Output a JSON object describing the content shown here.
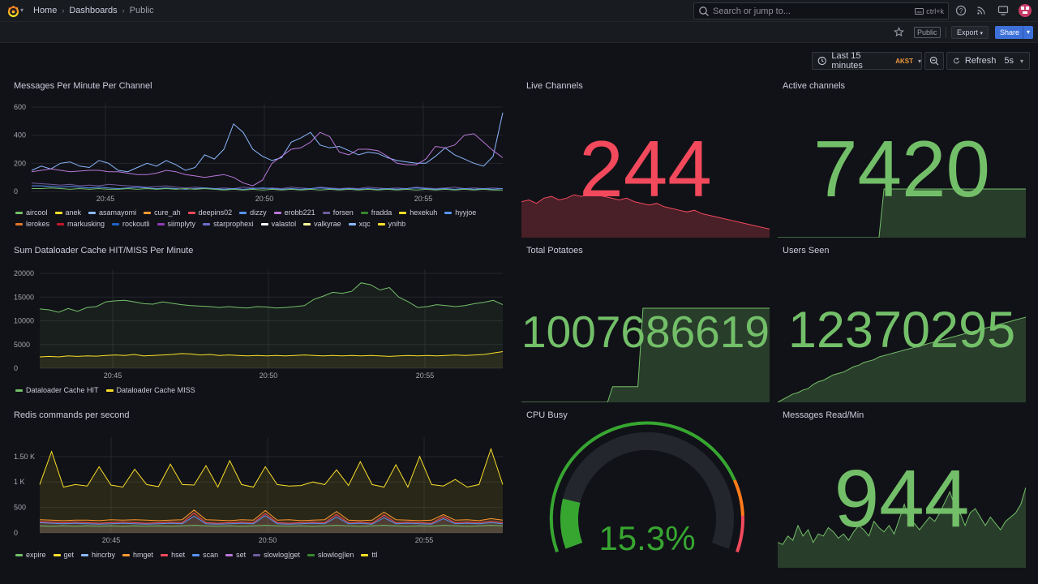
{
  "nav": {
    "breadcrumbs": [
      "Home",
      "Dashboards",
      "Public"
    ],
    "search_placeholder": "Search or jump to...",
    "search_shortcut": "ctrl+k"
  },
  "toolbar": {
    "public_badge": "Public",
    "export_label": "Export",
    "share_label": "Share"
  },
  "time": {
    "range_label": "Last 15 minutes",
    "timezone": "AKST",
    "refresh_label": "Refresh",
    "refresh_interval": "5s"
  },
  "colors": {
    "green": "#73bf69",
    "red": "#f2495c",
    "yellow": "#fade2a",
    "blue": "#5794f2"
  },
  "panels": {
    "messages_per_minute": {
      "title": "Messages Per Minute Per Channel",
      "y_ticks": [
        "600",
        "400",
        "200",
        "0"
      ],
      "x_ticks": [
        "20:45",
        "20:50",
        "20:55"
      ],
      "legend": [
        "aircool",
        "anek",
        "asamayomi",
        "cure_ah",
        "deepins02",
        "dizzy",
        "erobb221",
        "forsen",
        "fradda",
        "hexekuh",
        "hyyjoe",
        "lerokes",
        "markusking",
        "rockoutli",
        "siimplyty",
        "starprophexi",
        "valastol",
        "valkyrae",
        "xqc",
        "ynihb"
      ],
      "legend_colors": [
        "#73bf69",
        "#fade2a",
        "#8ab8ff",
        "#ff9830",
        "#f2495c",
        "#5794f2",
        "#b877d9",
        "#705da0",
        "#37872d",
        "#fade2a",
        "#5794f2",
        "#e0752d",
        "#c4162a",
        "#1f60c4",
        "#8f3bb8",
        "#6d6ec9",
        "#ffffff",
        "#fff899",
        "#8ab8ff",
        "#fade2a"
      ],
      "chart_data": {
        "type": "line",
        "ylim": [
          0,
          600
        ],
        "series": [
          {
            "name": "xqc",
            "color": "#8ab8ff",
            "values": [
              150,
              180,
              160,
              200,
              210,
              180,
              170,
              220,
              200,
              150,
              140,
              170,
              200,
              180,
              220,
              190,
              150,
              170,
              260,
              230,
              300,
              480,
              420,
              300,
              250,
              220,
              240,
              350,
              380,
              420,
              330,
              310,
              320,
              290,
              260,
              280,
              270,
              240,
              220,
              210,
              200,
              200,
              250,
              310,
              260,
              230,
              200,
              180,
              250,
              560
            ]
          },
          {
            "name": "erobb221",
            "color": "#b877d9",
            "values": [
              140,
              150,
              160,
              150,
              140,
              145,
              150,
              150,
              140,
              140,
              130,
              120,
              120,
              130,
              150,
              140,
              120,
              110,
              100,
              110,
              120,
              100,
              60,
              40,
              80,
              200,
              250,
              300,
              310,
              350,
              420,
              390,
              280,
              260,
              300,
              300,
              290,
              250,
              200,
              190,
              190,
              230,
              320,
              310,
              330,
              400,
              410,
              350,
              290,
              240
            ]
          },
          {
            "name": "forsen",
            "color": "#705da0",
            "values": [
              60,
              55,
              50,
              45,
              50,
              40,
              45,
              40,
              50,
              45,
              40,
              35,
              30,
              35,
              40,
              30,
              25,
              30,
              25,
              20,
              25,
              20,
              30,
              25,
              20,
              25,
              20,
              30,
              25,
              20,
              30,
              25,
              20,
              25,
              20,
              30,
              25,
              20,
              25,
              20,
              30,
              25,
              20,
              25,
              30,
              20,
              25,
              20,
              25,
              20
            ]
          },
          {
            "name": "dizzy",
            "color": "#5794f2",
            "values": [
              40,
              40,
              35,
              30,
              35,
              30,
              25,
              30,
              25,
              20,
              25,
              30,
              25,
              20,
              25,
              20,
              15,
              20,
              25,
              20,
              15,
              20,
              15,
              20,
              25,
              20,
              15,
              20,
              15,
              20,
              25,
              20,
              15,
              20,
              15,
              20,
              15,
              20,
              15,
              20,
              25,
              20,
              15,
              20,
              15,
              20,
              15,
              20,
              15,
              20
            ]
          },
          {
            "name": "fradda",
            "color": "#73bf69",
            "values": [
              20,
              20,
              25,
              20,
              15,
              20,
              15,
              20,
              15,
              15,
              20,
              15,
              20,
              15,
              20,
              15,
              20,
              15,
              20,
              15,
              10,
              15,
              10,
              15,
              10,
              15,
              10,
              15,
              10,
              15,
              10,
              15,
              10,
              15,
              10,
              15,
              10,
              15,
              10,
              15,
              10,
              15,
              10,
              15,
              10,
              15,
              10,
              15,
              10,
              10
            ]
          }
        ]
      }
    },
    "live_channels": {
      "title": "Live Channels",
      "value": "244"
    },
    "active_channels": {
      "title": "Active channels",
      "value": "7420"
    },
    "dataloader": {
      "title": "Sum Dataloader Cache HIT/MISS Per Minute",
      "y_ticks": [
        "20000",
        "15000",
        "10000",
        "5000",
        "0"
      ],
      "x_ticks": [
        "20:45",
        "20:50",
        "20:55"
      ],
      "legend": [
        "Dataloader Cache HIT",
        "Dataloader Cache MISS"
      ],
      "legend_colors": [
        "#73bf69",
        "#fade2a"
      ],
      "chart_data": {
        "type": "line",
        "ylim": [
          0,
          20000
        ],
        "series": [
          {
            "name": "Dataloader Cache HIT",
            "color": "#73bf69",
            "values": [
              12500,
              12300,
              11800,
              12600,
              12000,
              12800,
              13000,
              14000,
              14200,
              14300,
              14000,
              13600,
              13500,
              14000,
              13700,
              13400,
              13200,
              13100,
              13000,
              12800,
              13000,
              12800,
              12700,
              13000,
              12900,
              12700,
              12800,
              13000,
              13200,
              14500,
              15200,
              16000,
              15800,
              16200,
              18000,
              17600,
              16500,
              17000,
              15000,
              14000,
              12800,
              13000,
              13400,
              13200,
              13000,
              13200,
              13600,
              13900,
              14300,
              13400
            ]
          },
          {
            "name": "Dataloader Cache MISS",
            "color": "#fade2a",
            "values": [
              2400,
              2500,
              2400,
              2600,
              2500,
              2600,
              2550,
              2700,
              2800,
              2700,
              2900,
              2600,
              2700,
              2800,
              2900,
              3100,
              3000,
              2800,
              2900,
              2700,
              2800,
              2700,
              2600,
              2700,
              2600,
              2700,
              2600,
              2700,
              2800,
              2700,
              2600,
              2700,
              2600,
              2700,
              2600,
              2700,
              2600,
              2500,
              2600,
              2700,
              2600,
              2700,
              2600,
              2700,
              2800,
              2700,
              2800,
              2900,
              3200,
              3500
            ]
          }
        ]
      }
    },
    "total_potatoes": {
      "title": "Total Potatoes",
      "value": "1007686619"
    },
    "users_seen": {
      "title": "Users Seen",
      "value": "12370295"
    },
    "redis": {
      "title": "Redis commands per second",
      "y_ticks": [
        "1.50 K",
        "1 K",
        "500",
        "0"
      ],
      "x_ticks": [
        "20:45",
        "20:50",
        "20:55"
      ],
      "legend": [
        "expire",
        "get",
        "hincrby",
        "hmget",
        "hset",
        "scan",
        "set",
        "slowlog|get",
        "slowlog|len",
        "ttl"
      ],
      "legend_colors": [
        "#73bf69",
        "#fade2a",
        "#8ab8ff",
        "#ff9830",
        "#f2495c",
        "#5794f2",
        "#b877d9",
        "#705da0",
        "#37872d",
        "#fade2a"
      ],
      "chart_data": {
        "type": "area",
        "ylim": [
          0,
          1800
        ],
        "series": [
          {
            "name": "get",
            "color": "#fade2a",
            "values": [
              950,
              1600,
              900,
              950,
              920,
              1300,
              940,
              900,
              1250,
              950,
              910,
              1350,
              950,
              940,
              1320,
              900,
              1420,
              950,
              900,
              1300,
              950,
              920,
              930,
              1000,
              950,
              1240,
              930,
              1400,
              950,
              900,
              1340,
              900,
              1500,
              950,
              920,
              1050,
              900,
              950,
              1650,
              950
            ]
          },
          {
            "name": "hmget",
            "color": "#ff9830",
            "values": [
              260,
              250,
              240,
              250,
              250,
              240,
              260,
              250,
              260,
              250,
              240,
              250,
              260,
              450,
              260,
              250,
              240,
              260,
              250,
              440,
              250,
              260,
              240,
              250,
              260,
              420,
              250,
              240,
              250,
              410,
              260,
              250,
              240,
              250,
              360,
              250,
              260,
              240,
              280,
              250
            ]
          },
          {
            "name": "hset",
            "color": "#f2495c",
            "values": [
              220,
              210,
              200,
              210,
              200,
              190,
              200,
              210,
              200,
              190,
              200,
              210,
              200,
              390,
              200,
              190,
              200,
              210,
              200,
              380,
              200,
              190,
              200,
              210,
              200,
              360,
              200,
              210,
              190,
              350,
              200,
              210,
              200,
              190,
              320,
              200,
              210,
              200,
              230,
              200
            ]
          },
          {
            "name": "scan",
            "color": "#5794f2",
            "values": [
              200,
              190,
              180,
              190,
              180,
              170,
              180,
              190,
              180,
              170,
              180,
              190,
              180,
              330,
              180,
              170,
              180,
              190,
              180,
              340,
              180,
              170,
              180,
              190,
              180,
              310,
              180,
              190,
              170,
              300,
              180,
              190,
              180,
              170,
              280,
              180,
              190,
              180,
              200,
              180
            ]
          },
          {
            "name": "expire",
            "color": "#73bf69",
            "values": [
              140,
              130,
              140,
              130,
              140,
              130,
              140,
              130,
              140,
              130,
              140,
              130,
              140,
              150,
              140,
              130,
              140,
              130,
              140,
              150,
              140,
              130,
              140,
              130,
              140,
              150,
              140,
              130,
              140,
              150,
              140,
              130,
              140,
              130,
              150,
              140,
              130,
              140,
              150,
              140
            ]
          }
        ]
      }
    },
    "cpu_busy": {
      "title": "CPU Busy",
      "value": "15.3%",
      "percent": 15.3
    },
    "messages_read": {
      "title": "Messages Read/Min",
      "value": "944"
    }
  },
  "sparklines": {
    "live_channels": [
      310,
      320,
      300,
      330,
      340,
      320,
      330,
      350,
      340,
      360,
      350,
      340,
      330,
      320,
      330,
      310,
      300,
      290,
      300,
      280,
      270,
      260,
      250,
      260,
      240,
      230,
      220,
      210,
      200,
      190,
      180,
      170,
      160,
      150
    ],
    "active_channels": [
      0,
      0,
      0,
      0,
      0,
      0,
      0,
      0,
      0,
      0,
      0,
      0,
      0,
      0,
      0,
      0,
      0,
      0,
      0,
      0,
      0,
      7420,
      7420,
      7420,
      7420,
      7420,
      7420,
      7420,
      7420,
      7420,
      7420,
      7420,
      7420,
      7420,
      7420,
      7420,
      7420,
      7420,
      7420,
      7420,
      7420,
      7420,
      7420,
      7420,
      7420,
      7420,
      7420,
      7420,
      7420,
      7420
    ],
    "total_potatoes": [
      0,
      0,
      0,
      0,
      0,
      0,
      0,
      0,
      0,
      0,
      0,
      0,
      0,
      0,
      0,
      0,
      0,
      0,
      100,
      100,
      100,
      100,
      100,
      100,
      600,
      600,
      600,
      600,
      600,
      600,
      600,
      600,
      600,
      600,
      600,
      600,
      600,
      600,
      600,
      600,
      600,
      600,
      600,
      600,
      600,
      600,
      600,
      600,
      600,
      600
    ],
    "users_seen": [
      0,
      20,
      40,
      60,
      70,
      90,
      100,
      130,
      150,
      160,
      180,
      200,
      210,
      220,
      240,
      260,
      270,
      290,
      300,
      310,
      330,
      340,
      350,
      360,
      370,
      380,
      390,
      400,
      410,
      420,
      430,
      440,
      450,
      460,
      470,
      480,
      490,
      500,
      510,
      520,
      530,
      540,
      550,
      560,
      570,
      580,
      590,
      600,
      610,
      620
    ],
    "messages_read": [
      120,
      110,
      150,
      130,
      200,
      150,
      180,
      120,
      160,
      150,
      190,
      170,
      140,
      160,
      130,
      170,
      200,
      180,
      150,
      220,
      190,
      170,
      200,
      160,
      230,
      300,
      220,
      210,
      180,
      210,
      240,
      220,
      260,
      310,
      360,
      290,
      260,
      200,
      260,
      280,
      240,
      200,
      240,
      210,
      180,
      220,
      240,
      260,
      300,
      380
    ]
  }
}
